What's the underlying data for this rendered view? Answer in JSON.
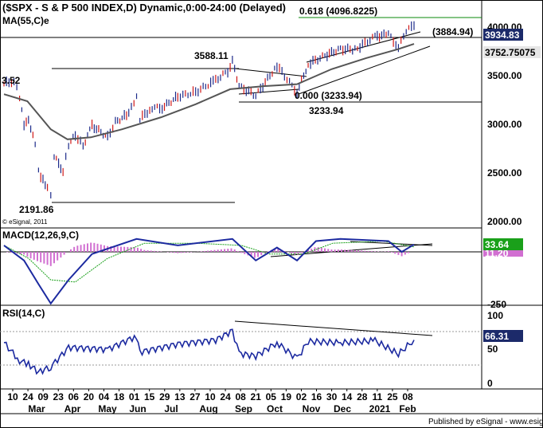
{
  "chart_data": [
    {
      "type": "candlestick",
      "title": "($SPX - S & P 500 INDEX,D) Dynamic,0:00-24:00 (Delayed)",
      "overlay_label": "MA(55,C)e",
      "watermark": "© eSignal, 2011",
      "yticks": [
        "4000.00",
        "3500.00",
        "3000.00",
        "2500.00",
        "2000.00"
      ],
      "price_badges": [
        {
          "text": "3934.83",
          "bg": "#1c2a6a",
          "fg": "#ffffff"
        },
        {
          "text": "3752.75075",
          "bg": "#e6e6e6",
          "fg": "#000000"
        }
      ],
      "annotations": {
        "fib": "0.618 (4096.8225)",
        "target": "(3884.94)",
        "high": "3588.11",
        "fib_zero": "0.000 (3233.94)",
        "low_line": "3233.94",
        "crash_low": "2191.86",
        "left_value": "3.52"
      },
      "series": [
        {
          "name": "SPX",
          "points": [
            [
              "Feb 10",
              3352
            ],
            [
              "Feb 19",
              3386
            ],
            [
              "Feb 24",
              3225
            ],
            [
              "Feb 28",
              2954
            ],
            [
              "Mar 03",
              3003
            ],
            [
              "Mar 09",
              2746
            ],
            [
              "Mar 12",
              2480
            ],
            [
              "Mar 16",
              2386
            ],
            [
              "Mar 20",
              2305
            ],
            [
              "Mar 23",
              2237
            ],
            [
              "Mar 26",
              2630
            ],
            [
              "Apr 03",
              2489
            ],
            [
              "Apr 08",
              2750
            ],
            [
              "Apr 14",
              2846
            ],
            [
              "Apr 21",
              2736
            ],
            [
              "Apr 29",
              2939
            ],
            [
              "May 13",
              2820
            ],
            [
              "May 20",
              2971
            ],
            [
              "Jun 01",
              3055
            ],
            [
              "Jun 08",
              3232
            ],
            [
              "Jun 11",
              3002
            ],
            [
              "Jun 22",
              3117
            ],
            [
              "Jul 01",
              3115
            ],
            [
              "Jul 15",
              3226
            ],
            [
              "Jul 31",
              3271
            ],
            [
              "Aug 18",
              3389
            ],
            [
              "Aug 31",
              3500
            ],
            [
              "Sep 02",
              3580
            ],
            [
              "Sep 08",
              3331
            ],
            [
              "Sep 23",
              3237
            ],
            [
              "Oct 12",
              3534
            ],
            [
              "Oct 30",
              3270
            ],
            [
              "Nov 09",
              3550
            ],
            [
              "Nov 24",
              3635
            ],
            [
              "Dec 08",
              3702
            ],
            [
              "Dec 21",
              3694
            ],
            [
              "Jan 08",
              3824
            ],
            [
              "Jan 20",
              3851
            ],
            [
              "Jan 29",
              3714
            ],
            [
              "Feb 05",
              3886
            ],
            [
              "Feb 12",
              3934
            ]
          ]
        },
        {
          "name": "MA(55,C)e",
          "points": [
            [
              "Feb 10",
              3250
            ],
            [
              "Mar 02",
              3180
            ],
            [
              "Mar 23",
              2900
            ],
            [
              "Apr 07",
              2800
            ],
            [
              "Apr 28",
              2820
            ],
            [
              "May 26",
              2900
            ],
            [
              "Jun 30",
              3020
            ],
            [
              "Jul 31",
              3150
            ],
            [
              "Aug 31",
              3300
            ],
            [
              "Sep 30",
              3330
            ],
            [
              "Oct 30",
              3350
            ],
            [
              "Nov 30",
              3500
            ],
            [
              "Dec 31",
              3610
            ],
            [
              "Jan 29",
              3700
            ],
            [
              "Feb 12",
              3752
            ]
          ]
        }
      ],
      "y_range": [
        1900,
        4150
      ]
    },
    {
      "type": "line",
      "title": "MACD(12,26,9,C)",
      "yticks": [
        "-250"
      ],
      "badges": [
        {
          "text": "33.64",
          "bg": "#1aa01a",
          "fg": "#ffffff"
        },
        {
          "text": "11.20",
          "bg": "#d16fd1",
          "fg": "#ffffff"
        }
      ],
      "series": [
        {
          "name": "MACD",
          "points": [
            [
              "Feb 10",
              30
            ],
            [
              "Feb 28",
              -40
            ],
            [
              "Mar 12",
              -150
            ],
            [
              "Mar 23",
              -240
            ],
            [
              "Apr 08",
              -130
            ],
            [
              "Apr 29",
              -10
            ],
            [
              "Jun 08",
              60
            ],
            [
              "Jul 15",
              30
            ],
            [
              "Sep 02",
              60
            ],
            [
              "Sep 23",
              -40
            ],
            [
              "Oct 12",
              20
            ],
            [
              "Oct 30",
              -40
            ],
            [
              "Nov 16",
              50
            ],
            [
              "Dec 08",
              60
            ],
            [
              "Jan 20",
              50
            ],
            [
              "Feb 01",
              0
            ],
            [
              "Feb 12",
              34
            ]
          ]
        },
        {
          "name": "Signal",
          "points": [
            [
              "Feb 10",
              30
            ],
            [
              "Mar 03",
              -30
            ],
            [
              "Mar 23",
              -130
            ],
            [
              "Apr 14",
              -140
            ],
            [
              "May 13",
              -30
            ],
            [
              "Jun 15",
              40
            ],
            [
              "Aug 01",
              40
            ],
            [
              "Sep 10",
              30
            ],
            [
              "Oct 05",
              -10
            ],
            [
              "Nov 05",
              -10
            ],
            [
              "Dec 01",
              40
            ],
            [
              "Jan 15",
              50
            ],
            [
              "Feb 12",
              23
            ]
          ]
        }
      ]
    },
    {
      "type": "line",
      "title": "RSI(14,C)",
      "yticks": [
        "100",
        "50",
        "0"
      ],
      "badges": [
        {
          "text": "66.31",
          "bg": "#1c2a6a",
          "fg": "#ffffff"
        }
      ],
      "series": [
        {
          "name": "RSI",
          "points": [
            [
              "Feb 10",
              62
            ],
            [
              "Feb 24",
              35
            ],
            [
              "Mar 03",
              30
            ],
            [
              "Mar 12",
              18
            ],
            [
              "Mar 23",
              26
            ],
            [
              "Apr 08",
              55
            ],
            [
              "May 13",
              52
            ],
            [
              "Jun 08",
              72
            ],
            [
              "Jun 11",
              48
            ],
            [
              "Jul 15",
              60
            ],
            [
              "Aug 18",
              66
            ],
            [
              "Sep 02",
              80
            ],
            [
              "Sep 08",
              46
            ],
            [
              "Sep 23",
              42
            ],
            [
              "Oct 12",
              62
            ],
            [
              "Oct 30",
              38
            ],
            [
              "Nov 09",
              64
            ],
            [
              "Dec 08",
              62
            ],
            [
              "Jan 08",
              65
            ],
            [
              "Jan 29",
              45
            ],
            [
              "Feb 12",
              66
            ]
          ]
        }
      ]
    }
  ],
  "x_axis": {
    "day_labels": [
      "10",
      "24",
      "09",
      "23",
      "06",
      "20",
      "04",
      "18",
      "01",
      "15",
      "29",
      "13",
      "27",
      "10",
      "24",
      "08",
      "21",
      "05",
      "19",
      "02",
      "16",
      "30",
      "14",
      "28",
      "11",
      "25",
      "08"
    ],
    "month_labels": [
      "Mar",
      "Apr",
      "May",
      "Jun",
      "Jul",
      "Aug",
      "Sep",
      "Oct",
      "Nov",
      "Dec",
      "2021",
      "Feb"
    ]
  },
  "footer": "Published by eSignal - www.esignal.com"
}
